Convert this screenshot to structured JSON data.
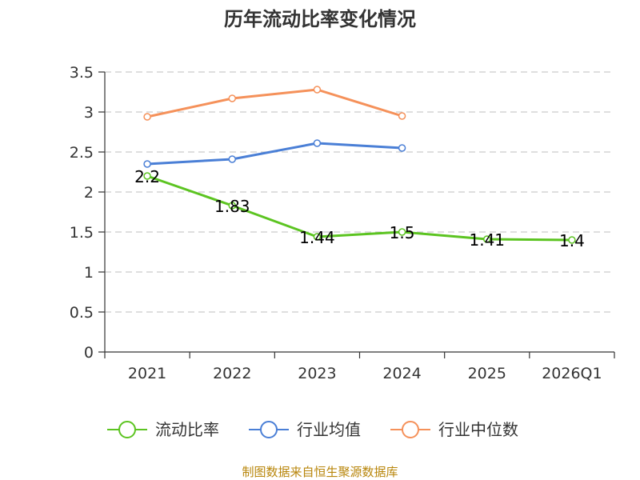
{
  "chart_data": {
    "type": "line",
    "title": "历年流动比率变化情况",
    "categories": [
      "2021",
      "2022",
      "2023",
      "2024",
      "2025",
      "2026Q1"
    ],
    "ylim": [
      0,
      3.5
    ],
    "yticks": [
      0,
      0.5,
      1,
      1.5,
      2,
      2.5,
      3,
      3.5
    ],
    "ytick_labels": [
      "0",
      "0.5",
      "1",
      "1.5",
      "2",
      "2.5",
      "3",
      "3.5"
    ],
    "grid": true,
    "legend_position": "bottom",
    "series": [
      {
        "name": "流动比率",
        "color": "#5cc421",
        "show_labels": true,
        "values": [
          2.2,
          1.83,
          1.44,
          1.5,
          1.41,
          1.4
        ],
        "labels": [
          "2.2",
          "1.83",
          "1.44",
          "1.5",
          "1.41",
          "1.4"
        ]
      },
      {
        "name": "行业均值",
        "color": "#4a7fd6",
        "show_labels": false,
        "values": [
          2.35,
          2.41,
          2.61,
          2.55,
          null,
          null
        ]
      },
      {
        "name": "行业中位数",
        "color": "#f5915a",
        "show_labels": false,
        "values": [
          2.94,
          3.17,
          3.28,
          2.95,
          null,
          null
        ]
      }
    ]
  },
  "source_text": "制图数据来自恒生聚源数据库"
}
